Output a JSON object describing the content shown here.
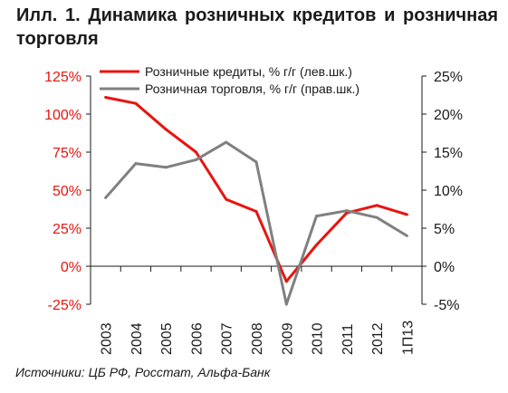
{
  "header": {
    "title": "Илл. 1. Динамика розничных кредитов и розничная торговля"
  },
  "footer": {
    "source": "Источники: ЦБ РФ, Росстат, Альфа-Банк"
  },
  "colors": {
    "credit_series": "#e8140f",
    "trade_series": "#808080",
    "left_axis_text": "#e8140f",
    "right_axis_text": "#1a1a1a"
  },
  "chart_data": {
    "type": "line",
    "title": "Илл. 1. Динамика розничных кредитов и розничная торговля",
    "categories": [
      "2003",
      "2004",
      "2005",
      "2006",
      "2007",
      "2008",
      "2009",
      "2010",
      "2011",
      "2012",
      "1П13"
    ],
    "series": [
      {
        "name": "Розничные кредиты, % г/г (лев.шк.)",
        "axis": "left",
        "color": "#e8140f",
        "values": [
          111,
          107,
          90,
          75,
          44,
          36,
          -10,
          14,
          35,
          40,
          34
        ]
      },
      {
        "name": "Розничная торговля, % г/г (прав.шк.)",
        "axis": "right",
        "color": "#808080",
        "values": [
          9,
          13.5,
          13,
          14,
          16.3,
          13.7,
          -5,
          6.6,
          7.3,
          6.4,
          4
        ]
      }
    ],
    "y_left": {
      "range": [
        -25,
        125
      ],
      "ticks": [
        -25,
        0,
        25,
        50,
        75,
        100,
        125
      ],
      "tick_labels": [
        "-25%",
        "0%",
        "25%",
        "50%",
        "75%",
        "100%",
        "125%"
      ]
    },
    "y_right": {
      "range": [
        -5,
        25
      ],
      "ticks": [
        -5,
        0,
        5,
        10,
        15,
        20,
        25
      ],
      "tick_labels": [
        "-5%",
        "0%",
        "5%",
        "10%",
        "15%",
        "20%",
        "25%"
      ]
    },
    "grid": false,
    "legend_position": "top-center",
    "xlabel": "",
    "ylabel": ""
  }
}
